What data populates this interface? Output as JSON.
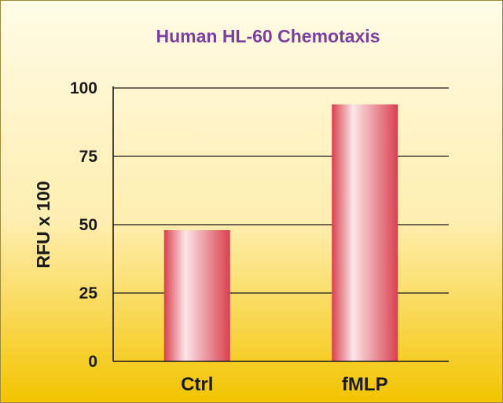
{
  "chart_data": {
    "type": "bar",
    "title": "Human HL-60 Chemotaxis",
    "xlabel": "",
    "ylabel": "RFU x 100",
    "categories": [
      "Ctrl",
      "fMLP"
    ],
    "values": [
      48,
      94
    ],
    "ylim": [
      0,
      100
    ],
    "yticks": [
      0,
      25,
      50,
      75,
      100
    ],
    "grid": true,
    "legend": "none"
  },
  "colors": {
    "title": "#7b3fa0",
    "bar": "#d8404f",
    "bar_highlight": "#fbe6e8",
    "background_top": "#fffbe6",
    "background_bottom": "#f3c400",
    "axis": "#1a1a1a",
    "grid": "#1a1a1a"
  }
}
